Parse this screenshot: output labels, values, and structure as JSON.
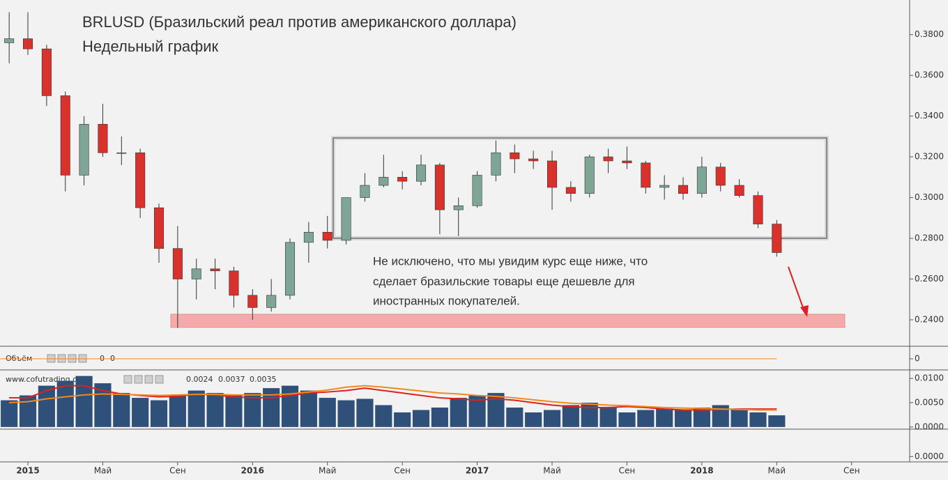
{
  "chart_data": [
    {
      "type": "candlestick",
      "title": "BRLUSD (Бразильский реал против американского доллара)",
      "subtitle": "Недельный график",
      "annotation": [
        "Не исключено, что мы увидим курс еще ниже, что",
        "сделает бразильские товары еще дешевле для",
        "иностранных покупателей."
      ],
      "x": [
        -1,
        0,
        1,
        2,
        3,
        4,
        5,
        6,
        7,
        8,
        9,
        10,
        11,
        12,
        13,
        14,
        15,
        16,
        17,
        18,
        19,
        20,
        21,
        22,
        23,
        24,
        25,
        26,
        27,
        28,
        29,
        30,
        31,
        32,
        33,
        34,
        35,
        36,
        37,
        38,
        39,
        40
      ],
      "open": [
        0.376,
        0.378,
        0.373,
        0.35,
        0.311,
        0.336,
        0.322,
        0.322,
        0.295,
        0.275,
        0.26,
        0.265,
        0.264,
        0.252,
        0.246,
        0.252,
        0.278,
        0.283,
        0.279,
        0.3,
        0.306,
        0.31,
        0.308,
        0.316,
        0.294,
        0.296,
        0.311,
        0.322,
        0.319,
        0.318,
        0.305,
        0.302,
        0.32,
        0.318,
        0.317,
        0.305,
        0.306,
        0.302,
        0.315,
        0.306,
        0.301,
        0.287
      ],
      "high": [
        0.391,
        0.391,
        0.375,
        0.352,
        0.34,
        0.346,
        0.33,
        0.324,
        0.297,
        0.286,
        0.27,
        0.27,
        0.266,
        0.255,
        0.26,
        0.28,
        0.288,
        0.291,
        0.3,
        0.312,
        0.321,
        0.313,
        0.321,
        0.317,
        0.3,
        0.313,
        0.328,
        0.326,
        0.323,
        0.323,
        0.308,
        0.321,
        0.324,
        0.325,
        0.318,
        0.311,
        0.31,
        0.32,
        0.317,
        0.309,
        0.303,
        0.289
      ],
      "low": [
        0.366,
        0.37,
        0.345,
        0.303,
        0.306,
        0.32,
        0.316,
        0.29,
        0.268,
        0.236,
        0.25,
        0.255,
        0.246,
        0.24,
        0.244,
        0.25,
        0.268,
        0.275,
        0.277,
        0.298,
        0.305,
        0.304,
        0.306,
        0.282,
        0.281,
        0.295,
        0.308,
        0.312,
        0.314,
        0.294,
        0.298,
        0.3,
        0.312,
        0.314,
        0.302,
        0.299,
        0.299,
        0.3,
        0.303,
        0.3,
        0.285,
        0.271
      ],
      "close": [
        0.378,
        0.373,
        0.35,
        0.311,
        0.336,
        0.322,
        0.322,
        0.295,
        0.275,
        0.26,
        0.265,
        0.264,
        0.252,
        0.246,
        0.252,
        0.278,
        0.283,
        0.279,
        0.3,
        0.306,
        0.31,
        0.308,
        0.316,
        0.294,
        0.296,
        0.311,
        0.322,
        0.319,
        0.318,
        0.305,
        0.302,
        0.32,
        0.318,
        0.317,
        0.305,
        0.306,
        0.302,
        0.315,
        0.306,
        0.301,
        0.287,
        0.273
      ],
      "up_color": "#7fa596",
      "down_color": "#d9312b",
      "xlim": [
        -1.49,
        47.1
      ],
      "xticks": [
        {
          "value": 0,
          "label": "2015"
        },
        {
          "value": 4,
          "label": "Май"
        },
        {
          "value": 8,
          "label": "Сен"
        },
        {
          "value": 12,
          "label": "2016"
        },
        {
          "value": 16,
          "label": "Май"
        },
        {
          "value": 20,
          "label": "Сен"
        },
        {
          "value": 24,
          "label": "2017"
        },
        {
          "value": 28,
          "label": "Май"
        },
        {
          "value": 32,
          "label": "Сен"
        },
        {
          "value": 36,
          "label": "2018"
        },
        {
          "value": 40,
          "label": "Май"
        },
        {
          "value": 44,
          "label": "Сен"
        }
      ],
      "ylim": [
        0.227,
        0.397
      ],
      "yticks": [
        {
          "value": 0.24,
          "label": "0.2400"
        },
        {
          "value": 0.26,
          "label": "0.2600"
        },
        {
          "value": 0.28,
          "label": "0.2800"
        },
        {
          "value": 0.3,
          "label": "0.3000"
        },
        {
          "value": 0.32,
          "label": "0.3200"
        },
        {
          "value": 0.34,
          "label": "0.3400"
        },
        {
          "value": 0.36,
          "label": "0.3600"
        },
        {
          "value": 0.38,
          "label": "0.3800"
        }
      ]
    },
    {
      "type": "volume",
      "label": "Объём",
      "readouts": [
        {
          "value": 0,
          "color": "#e0201a"
        },
        {
          "value": 0,
          "color": "#f08a1c"
        }
      ],
      "ylim": [
        -1,
        1
      ],
      "yticks": [
        0
      ]
    },
    {
      "type": "bar-line",
      "label": "www.cofutrading.c",
      "series": [
        {
          "color": "#2f5179",
          "readout": 0.0024,
          "values": [
            0.0055,
            0.0065,
            0.0085,
            0.0095,
            0.0105,
            0.009,
            0.007,
            0.006,
            0.0055,
            0.0065,
            0.0075,
            0.007,
            0.0065,
            0.007,
            0.008,
            0.0085,
            0.0075,
            0.006,
            0.0055,
            0.0058,
            0.0045,
            0.003,
            0.0035,
            0.004,
            0.006,
            0.0065,
            0.007,
            0.004,
            0.003,
            0.0035,
            0.0045,
            0.005,
            0.004,
            0.003,
            0.0035,
            0.0038,
            0.0035,
            0.004,
            0.0045,
            0.0038,
            0.003,
            0.0024
          ]
        },
        {
          "color": "#e0201a",
          "readout": 0.0037,
          "values": [
            0.006,
            0.006,
            0.0075,
            0.0085,
            0.0085,
            0.0075,
            0.0068,
            0.0065,
            0.0062,
            0.0063,
            0.0068,
            0.0066,
            0.0062,
            0.006,
            0.006,
            0.0065,
            0.007,
            0.0072,
            0.0075,
            0.008,
            0.0075,
            0.007,
            0.0065,
            0.006,
            0.0058,
            0.0055,
            0.0058,
            0.0055,
            0.005,
            0.0045,
            0.0042,
            0.004,
            0.004,
            0.0042,
            0.004,
            0.0037,
            0.0035,
            0.0035,
            0.0036,
            0.0037,
            0.0037,
            0.0037
          ]
        },
        {
          "color": "#f08a1c",
          "readout": 0.0035,
          "values": [
            0.005,
            0.0052,
            0.0058,
            0.0062,
            0.0066,
            0.0068,
            0.0067,
            0.0066,
            0.0065,
            0.0066,
            0.0067,
            0.0067,
            0.0066,
            0.0066,
            0.0066,
            0.0068,
            0.0072,
            0.0076,
            0.0082,
            0.0085,
            0.0082,
            0.0078,
            0.0074,
            0.007,
            0.0068,
            0.0065,
            0.0063,
            0.006,
            0.0056,
            0.0052,
            0.0049,
            0.0047,
            0.0045,
            0.0044,
            0.0042,
            0.004,
            0.0039,
            0.0038,
            0.0037,
            0.0036,
            0.0035,
            0.0035
          ]
        }
      ],
      "ylim": [
        -0.0003,
        0.0116
      ],
      "yticks": [
        {
          "value": 0,
          "label": "0.0000"
        },
        {
          "value": 0.005,
          "label": "0.0050"
        },
        {
          "value": 0.01,
          "label": "0.0100"
        }
      ]
    },
    {
      "type": "empty",
      "ylim": [
        -0.0008,
        0.0045
      ],
      "yticks": [
        {
          "value": 0,
          "label": "0.0000"
        }
      ]
    }
  ]
}
